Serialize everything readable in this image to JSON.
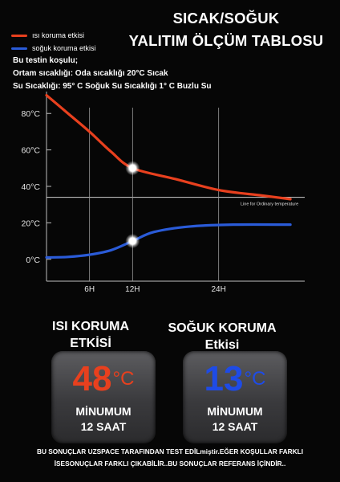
{
  "header": {
    "title_line1": "SICAK/SOĞUK",
    "title_line2": "YALITIM ÖLÇÜM TABLOSU"
  },
  "legend": {
    "hot_label": "ısı koruma etkisi",
    "cold_label": "soğuk koruma etkisi",
    "hot_color": "#e8401e",
    "cold_color": "#2a5bd8"
  },
  "conditions": {
    "line1": "Bu testin koşulu;",
    "line2": "Ortam sıcaklığı: Oda sıcaklığı 20°C Sıcak",
    "line3": "Su Sıcaklığı: 95° C Soğuk Su Sıcaklığı 1° C Buzlu Su"
  },
  "chart_data": {
    "type": "line",
    "x_unit": "hours",
    "x_ticks": [
      {
        "value": 6,
        "label": "6H"
      },
      {
        "value": 12,
        "label": "12H"
      },
      {
        "value": 24,
        "label": "24H"
      }
    ],
    "y_ticks": [
      {
        "value": 0,
        "label": "0°C"
      },
      {
        "value": 20,
        "label": "20°C"
      },
      {
        "value": 40,
        "label": "40°C"
      },
      {
        "value": 60,
        "label": "60°C"
      },
      {
        "value": 80,
        "label": "80°C"
      }
    ],
    "ylim": [
      -12,
      92
    ],
    "xlim": [
      0,
      36
    ],
    "reference_line": {
      "value": 34,
      "label": "Line for Ordinary temperature"
    },
    "series": [
      {
        "name": "ısı koruma etkisi",
        "color": "#e8401e",
        "points": [
          [
            0,
            90
          ],
          [
            3,
            80
          ],
          [
            6,
            70
          ],
          [
            9,
            59
          ],
          [
            12,
            50
          ],
          [
            18,
            44
          ],
          [
            24,
            38
          ],
          [
            30,
            35
          ],
          [
            34,
            33
          ]
        ]
      },
      {
        "name": "soğuk koruma etkisi",
        "color": "#2a5bd8",
        "points": [
          [
            0,
            1
          ],
          [
            3,
            1.3
          ],
          [
            6,
            2.5
          ],
          [
            9,
            5
          ],
          [
            12,
            10
          ],
          [
            15,
            15
          ],
          [
            20,
            18
          ],
          [
            26,
            19
          ],
          [
            34,
            19
          ]
        ]
      }
    ],
    "markers": [
      [
        12,
        50
      ],
      [
        12,
        10
      ]
    ],
    "grid": false,
    "legend_position": "top-left"
  },
  "hot_panel": {
    "heading_line1": "ISI KORUMA",
    "heading_line2": "ETKİSİ",
    "value": "48",
    "unit": "°C",
    "min_label": "MİNUMUM",
    "duration": "12 SAAT",
    "color": "#e8401e"
  },
  "cold_panel": {
    "heading_line1": "SOĞUK KORUMA",
    "heading_line2": "Etkisi",
    "value": "13",
    "unit": "°C",
    "min_label": "MİNUMUM",
    "duration": "12 SAAT",
    "color": "#1e4be6"
  },
  "footer": {
    "line1": "BU SONUÇLAR UZSPACE TARAFINDAN TEST EDİLmiştir.EĞER KOŞULLAR FARKLI",
    "line2": "İSESONUÇLAR FARKLI ÇIKABİLİR..BU SONUÇLAR REFERANS İÇİNDİR.."
  }
}
